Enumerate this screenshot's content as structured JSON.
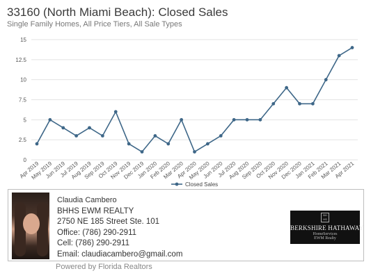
{
  "header": {
    "title": "33160 (North Miami Beach): Closed Sales",
    "subtitle": "Single Family Homes, All Price Tiers, All Sale Types"
  },
  "chart_data": {
    "type": "line",
    "title": "33160 (North Miami Beach): Closed Sales",
    "subtitle": "Single Family Homes, All Price Tiers, All Sale Types",
    "categories": [
      "Apr 2019",
      "May 2019",
      "Jun 2019",
      "Jul 2019",
      "Aug 2019",
      "Sep 2019",
      "Oct 2019",
      "Nov 2019",
      "Dec 2019",
      "Jan 2020",
      "Feb 2020",
      "Mar 2020",
      "Apr 2020",
      "May 2020",
      "Jun 2020",
      "Jul 2020",
      "Aug 2020",
      "Sep 2020",
      "Oct 2020",
      "Nov 2020",
      "Dec 2020",
      "Jan 2021",
      "Feb 2021",
      "Mar 2021",
      "Apr 2021"
    ],
    "series": [
      {
        "name": "Closed Sales",
        "values": [
          2,
          5,
          4,
          3,
          4,
          3,
          6,
          2,
          1,
          3,
          2,
          5,
          1,
          2,
          3,
          5,
          5,
          5,
          7,
          9,
          7,
          7,
          10,
          13,
          14
        ]
      }
    ],
    "y_ticks": [
      "0",
      "2.5",
      "5",
      "7.5",
      "10",
      "12.5",
      "15"
    ],
    "ylim": [
      0,
      15
    ],
    "grid": true,
    "legend_position": "bottom",
    "line_color": "#3e6788"
  },
  "agent": {
    "name": "Claudia Cambero",
    "company": "BHHS EWM REALTY",
    "address": "2750 NE 185 Street Ste. 101",
    "office": "Office: (786) 290-2911",
    "cell": "Cell: (786) 290-2911",
    "email": "Email: claudiacambero@gmail.com"
  },
  "logo": {
    "emblem": "BH HS",
    "brand": "BERKSHIRE HATHAWAY",
    "sub": "HomeServices",
    "sub2": "EWM Realty"
  },
  "footer": {
    "powered": "Powered by Florida Realtors"
  }
}
